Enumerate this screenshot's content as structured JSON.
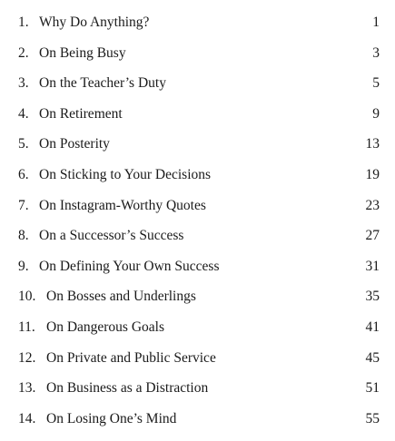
{
  "toc": {
    "entries": [
      {
        "number": "1.",
        "title": "Why Do Anything?",
        "page": "1"
      },
      {
        "number": "2.",
        "title": "On Being Busy",
        "page": "3"
      },
      {
        "number": "3.",
        "title": "On the Teacher’s Duty",
        "page": "5"
      },
      {
        "number": "4.",
        "title": "On Retirement",
        "page": "9"
      },
      {
        "number": "5.",
        "title": "On Posterity",
        "page": "13"
      },
      {
        "number": "6.",
        "title": "On Sticking to Your Decisions",
        "page": "19"
      },
      {
        "number": "7.",
        "title": "On Instagram-Worthy Quotes",
        "page": "23"
      },
      {
        "number": "8.",
        "title": "On a Successor’s Success",
        "page": "27"
      },
      {
        "number": "9.",
        "title": "On Defining Your Own Success",
        "page": "31"
      },
      {
        "number": "10.",
        "title": "On Bosses and Underlings",
        "page": "35"
      },
      {
        "number": "11.",
        "title": "On Dangerous Goals",
        "page": "41"
      },
      {
        "number": "12.",
        "title": "On Private and Public Service",
        "page": "45"
      },
      {
        "number": "13.",
        "title": "On Business as a Distraction",
        "page": "51"
      },
      {
        "number": "14.",
        "title": "On Losing One’s Mind",
        "page": "55"
      }
    ]
  }
}
